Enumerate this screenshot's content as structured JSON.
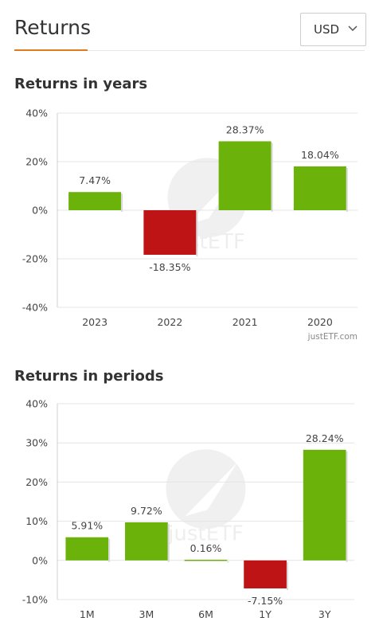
{
  "header": {
    "title": "Returns",
    "currency": {
      "selected": "USD",
      "icon": "chevron-down-icon"
    }
  },
  "colors": {
    "positive": "#6bb20a",
    "negative": "#bf1416",
    "accent": "#e07b1c",
    "grid": "#e4e4e4"
  },
  "sections": {
    "years_title": "Returns in years",
    "periods_title": "Returns in periods"
  },
  "chart_data": [
    {
      "type": "bar",
      "title": "Returns in years",
      "categories": [
        "2023",
        "2022",
        "2021",
        "2020"
      ],
      "values": [
        7.47,
        -18.35,
        28.37,
        18.04
      ],
      "value_labels": [
        "7.47%",
        "-18.35%",
        "28.37%",
        "18.04%"
      ],
      "yticks": [
        40,
        20,
        0,
        -20,
        -40
      ],
      "ytick_labels": [
        "40%",
        "20%",
        "0%",
        "-20%",
        "-40%"
      ],
      "ylim": [
        -40,
        40
      ],
      "grid": "horizontal",
      "credit": "justETF.com",
      "watermark": "justETF"
    },
    {
      "type": "bar",
      "title": "Returns in periods",
      "categories": [
        "1M",
        "3M",
        "6M",
        "1Y",
        "3Y"
      ],
      "values": [
        5.91,
        9.72,
        0.16,
        -7.15,
        28.24
      ],
      "value_labels": [
        "5.91%",
        "9.72%",
        "0.16%",
        "-7.15%",
        "28.24%"
      ],
      "yticks": [
        40,
        30,
        20,
        10,
        0,
        -10
      ],
      "ytick_labels": [
        "40%",
        "30%",
        "20%",
        "10%",
        "0%",
        "-10%"
      ],
      "ylim": [
        -10,
        40
      ],
      "grid": "horizontal",
      "credit": "",
      "watermark": "justETF"
    }
  ]
}
